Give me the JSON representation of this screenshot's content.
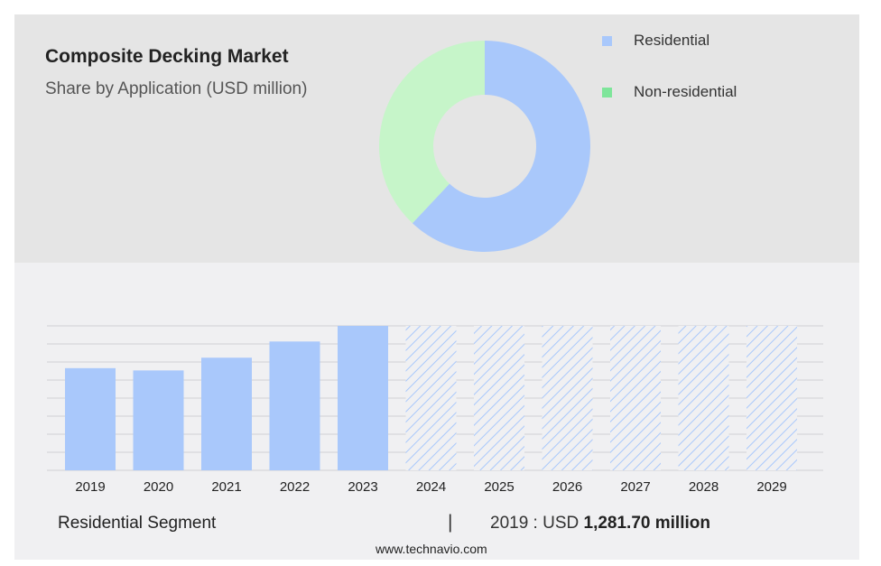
{
  "header": {
    "title": "Composite Decking Market",
    "subtitle": "Share by Application (USD million)"
  },
  "legend": [
    {
      "label": "Residential",
      "color": "#a9c8fb"
    },
    {
      "label": "Non-residential",
      "color": "#7ee59a"
    }
  ],
  "chart_data": [
    {
      "type": "pie",
      "title": "Composite Decking Market",
      "subtitle": "Share by Application (USD million)",
      "labels": [
        "Residential",
        "Non-residential"
      ],
      "values": [
        62,
        38
      ],
      "colors": [
        "#a9c8fb",
        "#c6f5c9"
      ],
      "donut": true
    },
    {
      "type": "bar",
      "categories": [
        "2019",
        "2020",
        "2021",
        "2022",
        "2023",
        "2024",
        "2025",
        "2026",
        "2027",
        "2028",
        "2029"
      ],
      "series": [
        {
          "name": "Residential",
          "values": [
            1281.7,
            1253,
            1413,
            1616,
            1812,
            null,
            null,
            null,
            null,
            null,
            null
          ]
        }
      ],
      "forecast_categories": [
        "2024",
        "2025",
        "2026",
        "2027",
        "2028",
        "2029"
      ],
      "ylim": [
        0,
        1812
      ],
      "grid": true,
      "bar_color": "#a9c8fb"
    }
  ],
  "footer": {
    "segment_label": "Residential Segment",
    "separator": "|",
    "value_prefix": "2019 : USD ",
    "value_bold": "1,281.70 million",
    "website": "www.technavio.com"
  }
}
